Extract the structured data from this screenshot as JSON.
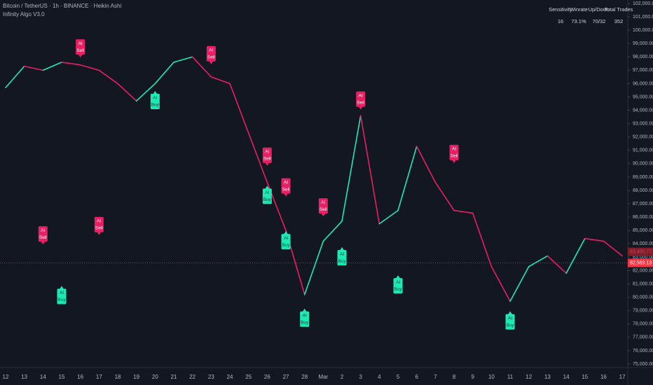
{
  "chart_data": {
    "type": "line",
    "title": "Bitcoin / TetherUS · 1h · BINANCE · Heikin Ashi",
    "subtitle": "Infinity Algo V3.0",
    "categories": [
      "12",
      "13",
      "14",
      "15",
      "16",
      "17",
      "18",
      "19",
      "20",
      "21",
      "22",
      "23",
      "24",
      "25",
      "26",
      "27",
      "28",
      "Mar",
      "2",
      "3",
      "4",
      "5",
      "6",
      "7",
      "8",
      "9",
      "10",
      "11",
      "12",
      "13",
      "14",
      "15",
      "16",
      "17"
    ],
    "series": [
      {
        "values": [
          95700,
          97300,
          97000,
          97600,
          97400,
          97000,
          96000,
          94700,
          96000,
          97600,
          98000,
          96500,
          96000,
          92300,
          88600,
          85000,
          80200,
          84200,
          85700,
          93600,
          85500,
          86500,
          91300,
          88600,
          86500,
          86300,
          82300,
          79700,
          82300,
          83100,
          81800,
          84400,
          84200,
          83100
        ]
      }
    ],
    "up_color": "#1de9b6",
    "down_color": "#e91e63",
    "ylim": [
      74740,
      102260
    ],
    "yticks": [
      {
        "value": 75000,
        "label": "75,000.00"
      },
      {
        "value": 76000,
        "label": "76,000.00"
      },
      {
        "value": 77000,
        "label": "77,000.00"
      },
      {
        "value": 78000,
        "label": "78,000.00"
      },
      {
        "value": 79000,
        "label": "79,000.00"
      },
      {
        "value": 80000,
        "label": "80,000.00"
      },
      {
        "value": 81000,
        "label": "81,000.00"
      },
      {
        "value": 82000,
        "label": "82,000.00"
      },
      {
        "value": 83000,
        "label": "83,000.00"
      },
      {
        "value": 84000,
        "label": "84,000.00"
      },
      {
        "value": 85000,
        "label": "85,000.00"
      },
      {
        "value": 86000,
        "label": "86,000.00"
      },
      {
        "value": 87000,
        "label": "87,000.00"
      },
      {
        "value": 88000,
        "label": "88,000.00"
      },
      {
        "value": 89000,
        "label": "89,000.00"
      },
      {
        "value": 90000,
        "label": "90,000.00"
      },
      {
        "value": 91000,
        "label": "91,000.00"
      },
      {
        "value": 92000,
        "label": "92,000.00"
      },
      {
        "value": 93000,
        "label": "93,000.00"
      },
      {
        "value": 94000,
        "label": "94,000.00"
      },
      {
        "value": 95000,
        "label": "95,000.00"
      },
      {
        "value": 96000,
        "label": "96,000.00"
      },
      {
        "value": 97000,
        "label": "97,000.00"
      },
      {
        "value": 98000,
        "label": "98,000.00"
      },
      {
        "value": 99000,
        "label": "99,000.00"
      },
      {
        "value": 100000,
        "label": "100,000.00"
      },
      {
        "value": 101000,
        "label": "101,000.00"
      },
      {
        "value": 102000,
        "label": "102,000.00"
      }
    ],
    "price_labels": [
      {
        "value": 83400.77,
        "label": "83,400.77",
        "color": "#7a1f2b"
      },
      {
        "value": 82569.13,
        "label": "82,569.13",
        "color": "#f23645"
      }
    ],
    "signals": [
      {
        "text": [
          "AI",
          "Sell"
        ],
        "at": "16",
        "value": 97900
      },
      {
        "text": [
          "AI",
          "Buy"
        ],
        "at": "20",
        "value": 95500
      },
      {
        "text": [
          "AI",
          "Sell"
        ],
        "at": "23",
        "value": 97400
      },
      {
        "text": [
          "AI",
          "Sell"
        ],
        "at": "26",
        "value": 89800
      },
      {
        "text": [
          "AI",
          "Buy"
        ],
        "at": "26",
        "value": 88400
      },
      {
        "text": [
          "AI",
          "Sell"
        ],
        "at": "27",
        "value": 87500
      },
      {
        "text": [
          "AI",
          "Buy"
        ],
        "at": "27",
        "value": 85000
      },
      {
        "text": [
          "AI",
          "Sell"
        ],
        "at": "Mar",
        "value": 86000
      },
      {
        "text": [
          "AI",
          "Buy"
        ],
        "at": "28",
        "value": 79200
      },
      {
        "text": [
          "AI",
          "Buy"
        ],
        "at": "2",
        "value": 83800
      },
      {
        "text": [
          "AI",
          "Sell"
        ],
        "at": "3",
        "value": 94000
      },
      {
        "text": [
          "AI",
          "Buy"
        ],
        "at": "5",
        "value": 81700
      },
      {
        "text": [
          "AI",
          "Sell"
        ],
        "at": "8",
        "value": 90000
      },
      {
        "text": [
          "AI",
          "Buy"
        ],
        "at": "11",
        "value": 79000
      },
      {
        "text": [
          "AI",
          "Sell"
        ],
        "at": "14",
        "value": 83900
      },
      {
        "text": [
          "AI",
          "Buy"
        ],
        "at": "15",
        "value": 80900
      },
      {
        "text": [
          "AI",
          "Sell"
        ],
        "at": "17",
        "value": 84600
      }
    ],
    "stats_table": {
      "header": [
        "Sensitivity",
        "Winrate",
        "Up/Down",
        "Total Trades"
      ],
      "row": [
        "16",
        "73.1%",
        "70/32",
        "352"
      ]
    }
  }
}
